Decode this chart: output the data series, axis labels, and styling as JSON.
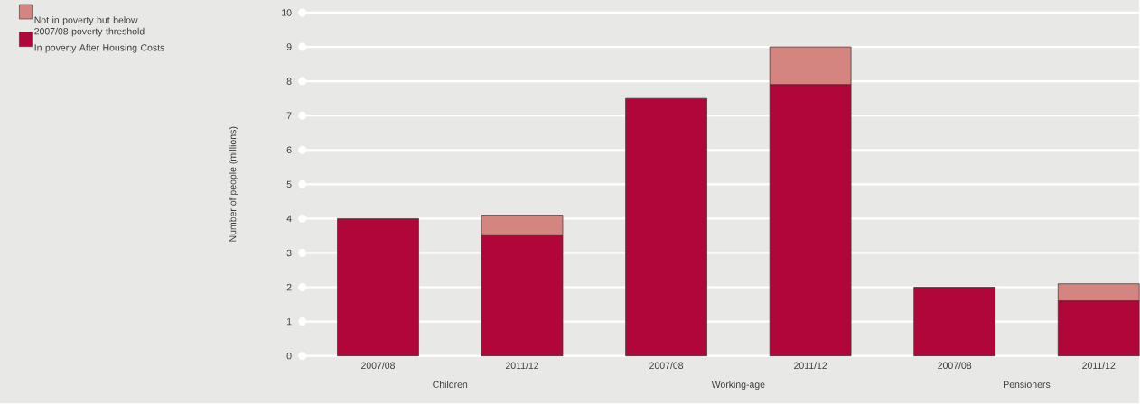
{
  "chart_data": {
    "type": "bar",
    "stacked": true,
    "ylabel": "Number of people (millions)",
    "categories": [
      "2007/08",
      "2011/12",
      "2007/08",
      "2011/12",
      "2007/08",
      "2011/12"
    ],
    "series": [
      {
        "name": "In poverty After Housing Costs",
        "color": "#b0063a",
        "values": [
          4.0,
          3.5,
          7.5,
          7.9,
          2.0,
          1.6
        ]
      },
      {
        "name": "Not in poverty but below 2007/08 poverty threshold",
        "color": "#d58580",
        "values": [
          null,
          0.6,
          null,
          1.1,
          null,
          0.5
        ]
      }
    ],
    "annotations": [
      "Children",
      "Working-age",
      "Pensioners"
    ],
    "ylim": [
      0,
      10
    ],
    "yticks": [
      0,
      1,
      2,
      3,
      4,
      5,
      6,
      7,
      8,
      9,
      10
    ],
    "grid": "y",
    "legend": "top left"
  }
}
